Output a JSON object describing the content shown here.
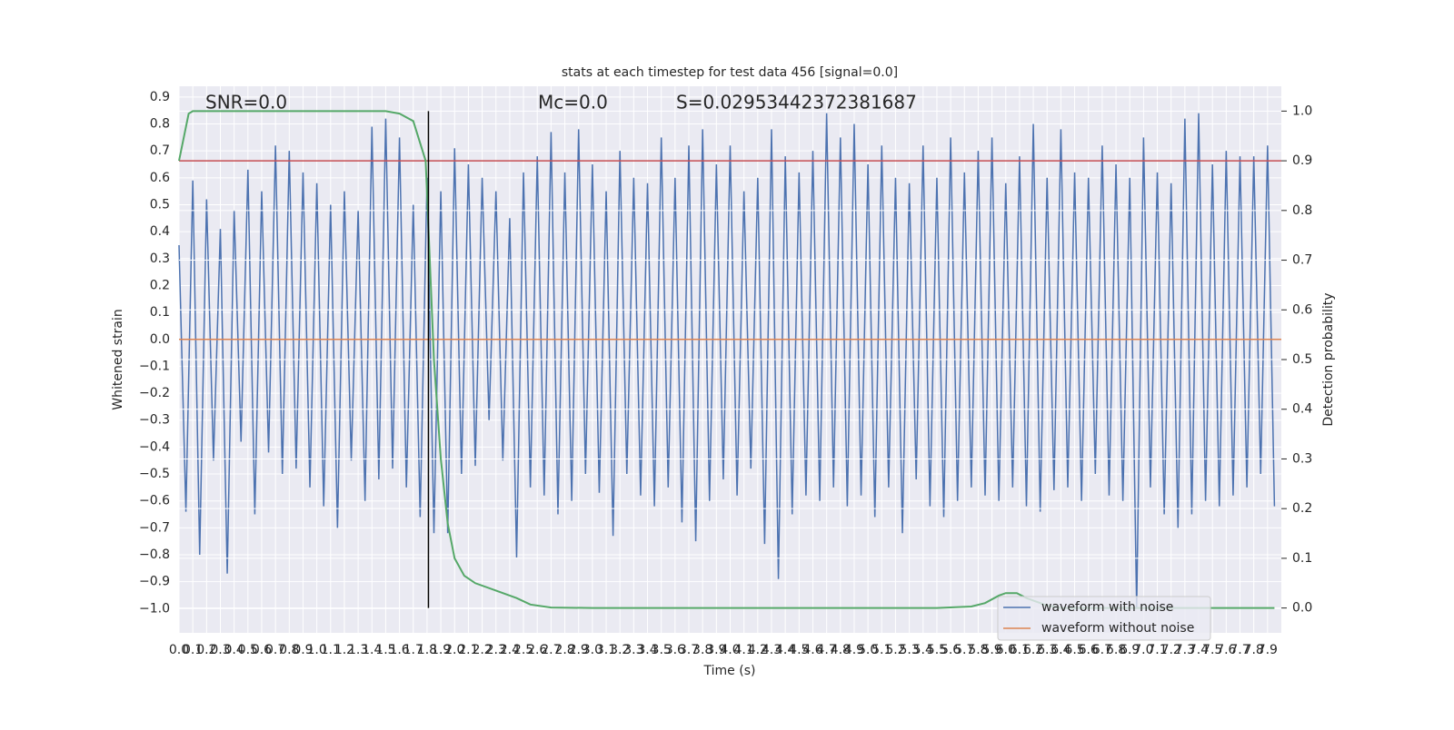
{
  "chart_data": {
    "type": "line",
    "title": "stats at each timestep for test data 456 [signal=0.0]",
    "xlabel": "Time (s)",
    "ylabel": "Whitened strain",
    "y2label": "Detection probability",
    "annotations": [
      "SNR=0.0",
      "Mc=0.0",
      "S=0.02953442372381687"
    ],
    "xlim": [
      0,
      8.0
    ],
    "ylim": [
      -1.09,
      0.94
    ],
    "y2lim": [
      -0.05,
      1.05
    ],
    "grid": true,
    "legend": "lower right",
    "xticks": [
      {
        "value": 0,
        "label": "0.0"
      },
      0.1,
      0.2,
      0.3,
      0.4,
      0.5,
      0.6,
      0.7,
      0.8,
      0.9,
      {
        "value": 1,
        "label": "1.0"
      },
      1.1,
      1.2,
      1.3,
      1.4,
      1.5,
      1.6,
      1.7,
      1.8,
      1.9,
      {
        "value": 2,
        "label": "2.0"
      },
      2.1,
      2.2,
      2.3,
      2.4,
      2.5,
      2.6,
      2.7,
      2.8,
      2.9,
      {
        "value": 3,
        "label": "3.0"
      },
      3.1,
      3.2,
      3.3,
      3.4,
      3.5,
      3.6,
      3.7,
      3.8,
      3.9,
      {
        "value": 4,
        "label": "4.0"
      },
      4.1,
      4.2,
      4.3,
      4.4,
      4.5,
      4.6,
      4.7,
      4.8,
      4.9,
      {
        "value": 5,
        "label": "5.0"
      },
      5.1,
      5.2,
      5.3,
      5.4,
      5.5,
      5.6,
      5.7,
      5.8,
      5.9,
      {
        "value": 6,
        "label": "6.0"
      },
      6.1,
      6.2,
      6.3,
      6.4,
      6.5,
      6.6,
      6.7,
      6.8,
      6.9,
      {
        "value": 7,
        "label": "7.0"
      },
      7.1,
      7.2,
      7.3,
      7.4,
      7.5,
      7.6,
      7.7,
      7.8,
      7.9
    ],
    "yticks": [
      {
        "value": -1.0,
        "label": "−1.0"
      },
      {
        "value": -0.9,
        "label": "−0.9"
      },
      {
        "value": -0.8,
        "label": "−0.8"
      },
      {
        "value": -0.7,
        "label": "−0.7"
      },
      {
        "value": -0.6,
        "label": "−0.6"
      },
      {
        "value": -0.5,
        "label": "−0.5"
      },
      {
        "value": -0.4,
        "label": "−0.4"
      },
      {
        "value": -0.3,
        "label": "−0.3"
      },
      {
        "value": -0.2,
        "label": "−0.2"
      },
      {
        "value": -0.1,
        "label": "−0.1"
      },
      {
        "value": 0,
        "label": "0.0"
      },
      0.1,
      0.2,
      0.3,
      0.4,
      0.5,
      0.6,
      0.7,
      0.8,
      0.9
    ],
    "y2ticks": [
      {
        "value": 0,
        "label": "0.0"
      },
      0.1,
      0.2,
      0.3,
      0.4,
      0.5,
      0.6,
      0.7,
      0.8,
      0.9,
      {
        "value": 1,
        "label": "1.0"
      }
    ],
    "series": [
      {
        "name": "waveform with noise",
        "color": "#4c72b0",
        "x": [
          0,
          0.05,
          0.1,
          0.15,
          0.2,
          0.25,
          0.3,
          0.35,
          0.4,
          0.45,
          0.5,
          0.55,
          0.6,
          0.65,
          0.7,
          0.75,
          0.8,
          0.85,
          0.9,
          0.95,
          1,
          1.05,
          1.1,
          1.15,
          1.2,
          1.25,
          1.3,
          1.35,
          1.4,
          1.45,
          1.5,
          1.55,
          1.6,
          1.65,
          1.7,
          1.75,
          1.8,
          1.85,
          1.9,
          1.95,
          2,
          2.05,
          2.1,
          2.15,
          2.2,
          2.25,
          2.3,
          2.35,
          2.4,
          2.45,
          2.5,
          2.55,
          2.6,
          2.65,
          2.7,
          2.75,
          2.8,
          2.85,
          2.9,
          2.95,
          3,
          3.05,
          3.1,
          3.15,
          3.2,
          3.25,
          3.3,
          3.35,
          3.4,
          3.45,
          3.5,
          3.55,
          3.6,
          3.65,
          3.7,
          3.75,
          3.8,
          3.85,
          3.9,
          3.95,
          4,
          4.05,
          4.1,
          4.15,
          4.2,
          4.25,
          4.3,
          4.35,
          4.4,
          4.45,
          4.5,
          4.55,
          4.6,
          4.65,
          4.7,
          4.75,
          4.8,
          4.85,
          4.9,
          4.95,
          5,
          5.05,
          5.1,
          5.15,
          5.2,
          5.25,
          5.3,
          5.35,
          5.4,
          5.45,
          5.5,
          5.55,
          5.6,
          5.65,
          5.7,
          5.75,
          5.8,
          5.85,
          5.9,
          5.95,
          6,
          6.05,
          6.1,
          6.15,
          6.2,
          6.25,
          6.3,
          6.35,
          6.4,
          6.45,
          6.5,
          6.55,
          6.6,
          6.65,
          6.7,
          6.75,
          6.8,
          6.85,
          6.9,
          6.95,
          7,
          7.05,
          7.1,
          7.15,
          7.2,
          7.25,
          7.3,
          7.35,
          7.4,
          7.45,
          7.5,
          7.55,
          7.6,
          7.65,
          7.7,
          7.75,
          7.8,
          7.85,
          7.9,
          7.95
        ],
        "values": [
          0.35,
          -0.64,
          0.59,
          -0.8,
          0.52,
          -0.45,
          0.41,
          -0.87,
          0.48,
          -0.38,
          0.63,
          -0.65,
          0.55,
          -0.42,
          0.72,
          -0.5,
          0.7,
          -0.48,
          0.62,
          -0.55,
          0.58,
          -0.62,
          0.5,
          -0.7,
          0.55,
          -0.45,
          0.48,
          -0.6,
          0.79,
          -0.52,
          0.82,
          -0.48,
          0.75,
          -0.55,
          0.5,
          -0.66,
          0.6,
          -0.72,
          0.55,
          -0.72,
          0.71,
          -0.5,
          0.65,
          -0.47,
          0.6,
          -0.3,
          0.55,
          -0.45,
          0.45,
          -0.81,
          0.62,
          -0.55,
          0.68,
          -0.58,
          0.77,
          -0.65,
          0.62,
          -0.6,
          0.78,
          -0.5,
          0.65,
          -0.57,
          0.55,
          -0.73,
          0.7,
          -0.5,
          0.6,
          -0.58,
          0.58,
          -0.62,
          0.75,
          -0.55,
          0.6,
          -0.68,
          0.72,
          -0.75,
          0.78,
          -0.6,
          0.65,
          -0.52,
          0.72,
          -0.58,
          0.55,
          -0.48,
          0.6,
          -0.76,
          0.78,
          -0.89,
          0.68,
          -0.65,
          0.62,
          -0.58,
          0.7,
          -0.6,
          0.84,
          -0.55,
          0.75,
          -0.62,
          0.8,
          -0.58,
          0.65,
          -0.66,
          0.72,
          -0.55,
          0.6,
          -0.72,
          0.58,
          -0.52,
          0.72,
          -0.62,
          0.6,
          -0.66,
          0.75,
          -0.6,
          0.62,
          -0.55,
          0.7,
          -0.58,
          0.75,
          -0.6,
          0.58,
          -0.55,
          0.68,
          -0.62,
          0.8,
          -0.64,
          0.6,
          -0.56,
          0.78,
          -0.55,
          0.62,
          -0.6,
          0.6,
          -0.5,
          0.72,
          -0.58,
          0.65,
          -0.6,
          0.6,
          -1.0,
          0.75,
          -0.55,
          0.62,
          -0.65,
          0.58,
          -0.7,
          0.82,
          -0.65,
          0.84,
          -0.6,
          0.65,
          -0.62,
          0.7,
          -0.58,
          0.68,
          -0.55,
          0.68,
          -0.5,
          0.72,
          -0.62
        ]
      },
      {
        "name": "waveform without noise",
        "color": "#dd8452",
        "x": [
          0,
          8.0
        ],
        "values": [
          0,
          0
        ]
      }
    ],
    "probability": {
      "color": "#55a868",
      "axis": "y2",
      "x": [
        0,
        0.07,
        0.1,
        1.5,
        1.6,
        1.7,
        1.79,
        1.85,
        1.9,
        1.95,
        2.0,
        2.07,
        2.15,
        2.3,
        2.45,
        2.55,
        2.7,
        3.0,
        5.5,
        5.75,
        5.85,
        5.95,
        6.0,
        6.08,
        6.15,
        6.3,
        6.4,
        7.95
      ],
      "values": [
        0.9,
        0.995,
        1.0,
        1.0,
        0.995,
        0.98,
        0.9,
        0.5,
        0.3,
        0.17,
        0.1,
        0.065,
        0.05,
        0.035,
        0.02,
        0.007,
        0.001,
        0,
        0,
        0.003,
        0.01,
        0.025,
        0.03,
        0.03,
        0.02,
        0.005,
        0,
        0
      ]
    },
    "threshold": {
      "value": 0.9,
      "color": "#c44e52",
      "axis": "y2"
    },
    "marker_time": {
      "value": 1.81,
      "color": "#000000"
    }
  }
}
